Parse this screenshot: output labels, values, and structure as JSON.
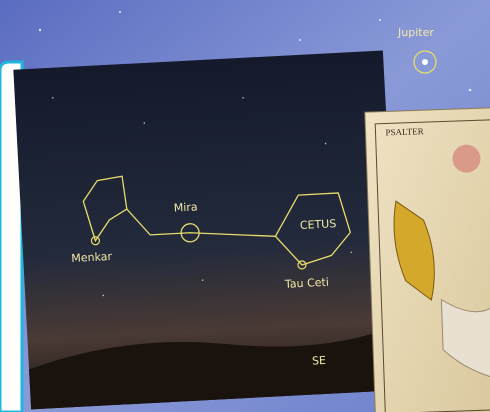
{
  "photo": {
    "labels": {
      "jupiter": "Jupiter",
      "mira": "Mira",
      "menkar": "Menkar",
      "cetus": "CETUS",
      "tau_ceti": "Tau Ceti",
      "direction": "SE"
    }
  },
  "atlas": {
    "title": "PSALTER"
  }
}
